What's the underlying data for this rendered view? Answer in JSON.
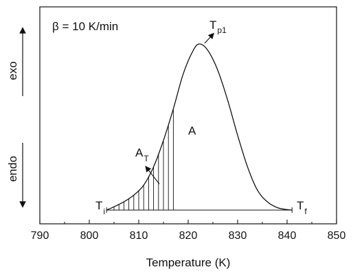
{
  "chart_data": {
    "type": "line",
    "title": "",
    "xlabel": "Temperature (K)",
    "ylabel": "",
    "xlim": [
      790,
      850
    ],
    "xticks": [
      790,
      800,
      810,
      820,
      830,
      840,
      850
    ],
    "grid": false,
    "legend": "none",
    "peak": {
      "onset_T": 803.5,
      "end_T": 841,
      "peak_T": 822.3,
      "baseline_level": 0.0,
      "peak_level": 1.0,
      "hatch_until_T": 817
    },
    "series": [
      {
        "x": [
          803.5,
          805,
          807,
          809,
          811,
          813,
          815,
          817,
          819,
          821,
          822.3,
          824,
          826,
          828,
          830,
          832,
          834,
          836,
          838,
          840,
          841
        ],
        "y": [
          0.0,
          0.02,
          0.05,
          0.09,
          0.15,
          0.26,
          0.42,
          0.61,
          0.82,
          0.96,
          1.0,
          0.96,
          0.84,
          0.66,
          0.45,
          0.26,
          0.12,
          0.05,
          0.015,
          0.003,
          0.0
        ]
      }
    ],
    "annotations": {
      "heating_rate": "β = 10 K/min",
      "peak_label": "T",
      "peak_label_sub": "p1",
      "area_total": "A",
      "area_partial": "A",
      "area_partial_sub": "T",
      "onset_label": "T",
      "onset_sub": "i",
      "end_label": "T",
      "end_sub": "f",
      "exo": "exo",
      "endo": "endo"
    }
  }
}
